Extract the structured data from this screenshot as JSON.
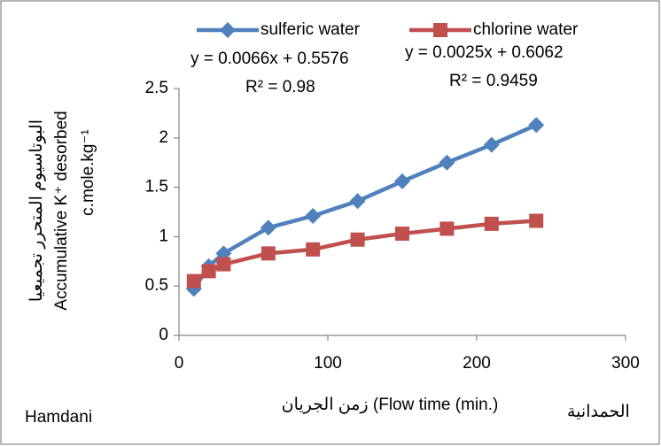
{
  "chart_data": {
    "type": "line",
    "x": [
      10,
      20,
      30,
      60,
      90,
      120,
      150,
      180,
      210,
      240
    ],
    "series": [
      {
        "name": "sulferic water",
        "color": "#4f81bd",
        "marker": "diamond",
        "values": [
          0.47,
          0.7,
          0.83,
          1.09,
          1.21,
          1.36,
          1.56,
          1.75,
          1.93,
          2.13
        ]
      },
      {
        "name": "chlorine water",
        "color": "#c0504d",
        "marker": "square",
        "values": [
          0.55,
          0.65,
          0.72,
          0.83,
          0.87,
          0.97,
          1.03,
          1.08,
          1.13,
          1.16
        ]
      }
    ],
    "xlim": [
      0,
      300
    ],
    "xticks": [
      0,
      100,
      200,
      300
    ],
    "ylim": [
      0,
      2.5
    ],
    "yticks": [
      0,
      0.5,
      1,
      1.5,
      2,
      2.5
    ],
    "grid": false,
    "legend": "top",
    "annotations": [
      "y = 0.0066x + 0.5576",
      "R² = 0.98",
      "y = 0.0025x + 0.6062",
      "R² = 0.9459"
    ],
    "y_label": [
      "البوتاسيوم المتحرر تجميعيا",
      "Accumulative K⁺ desorbed",
      "c.mole.kg⁻¹"
    ],
    "x_label": "زمن الجريان (Flow time (min.)",
    "notes": [
      "Hamdani",
      "الحمدانية"
    ]
  }
}
